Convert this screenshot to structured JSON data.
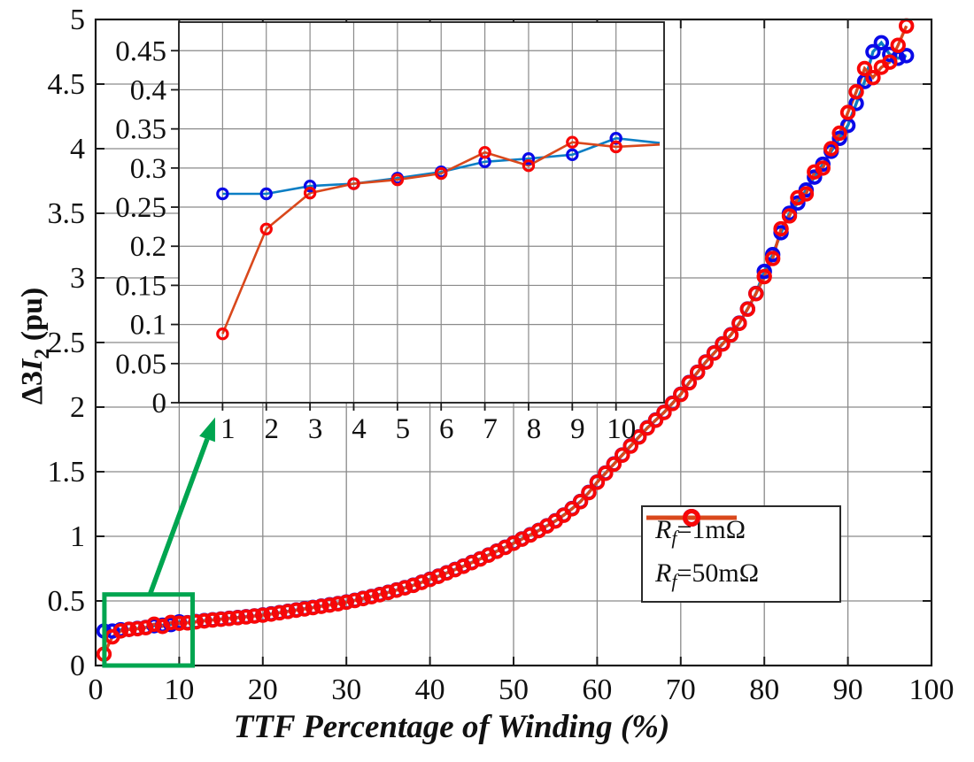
{
  "figure_title": "",
  "labels": {
    "x": "TTF Percentage of Winding (%)",
    "y_pre": "Δ3",
    "y_symbol": "I",
    "y_sub": "2",
    "y_post": " (pu)"
  },
  "colors": {
    "grid": "#8a8a8a",
    "axis_border": "#1a1a1a",
    "background": "#ffffff",
    "blue_line": "#0b7ec4",
    "blue_marker": "#0a0ae8",
    "red_line": "#d9481c",
    "red_marker": "#f80707",
    "annotation_green": "#00a550"
  },
  "legend": {
    "entries": [
      {
        "pre": "R",
        "sub": "f",
        "post": "=1mΩ"
      },
      {
        "pre": "R",
        "sub": "f",
        "post": "=50mΩ"
      }
    ]
  },
  "chart_data": {
    "type": "line",
    "title": "",
    "xlabel": "TTF Percentage of Winding (%)",
    "ylabel": "Δ3I2 (pu)",
    "xlim": [
      0,
      100
    ],
    "ylim": [
      0,
      5
    ],
    "x_ticks": [
      0,
      10,
      20,
      30,
      40,
      50,
      60,
      70,
      80,
      90,
      100
    ],
    "y_ticks": [
      0,
      0.5,
      1,
      1.5,
      2,
      2.5,
      3,
      3.5,
      4,
      4.5,
      5
    ],
    "grid": true,
    "legend_position": "right-center",
    "x": [
      1,
      2,
      3,
      4,
      5,
      6,
      7,
      8,
      9,
      10,
      11,
      12,
      13,
      14,
      15,
      16,
      17,
      18,
      19,
      20,
      21,
      22,
      23,
      24,
      25,
      26,
      27,
      28,
      29,
      30,
      31,
      32,
      33,
      34,
      35,
      36,
      37,
      38,
      39,
      40,
      41,
      42,
      43,
      44,
      45,
      46,
      47,
      48,
      49,
      50,
      51,
      52,
      53,
      54,
      55,
      56,
      57,
      58,
      59,
      60,
      61,
      62,
      63,
      64,
      65,
      66,
      67,
      68,
      69,
      70,
      71,
      72,
      73,
      74,
      75,
      76,
      77,
      78,
      79,
      80,
      81,
      82,
      83,
      84,
      85,
      86,
      87,
      88,
      89,
      90,
      91,
      92,
      93,
      94,
      95,
      96,
      97
    ],
    "series": [
      {
        "name": "Rf=1mΩ",
        "line_color": "#0b7ec4",
        "marker_color": "#0a0ae8",
        "values": [
          0.267,
          0.267,
          0.277,
          0.28,
          0.287,
          0.295,
          0.308,
          0.312,
          0.317,
          0.338,
          0.332,
          0.34,
          0.348,
          0.354,
          0.36,
          0.366,
          0.372,
          0.378,
          0.384,
          0.392,
          0.4,
          0.41,
          0.42,
          0.43,
          0.44,
          0.45,
          0.46,
          0.47,
          0.48,
          0.492,
          0.505,
          0.52,
          0.535,
          0.55,
          0.567,
          0.585,
          0.603,
          0.622,
          0.645,
          0.668,
          0.692,
          0.718,
          0.744,
          0.77,
          0.798,
          0.826,
          0.856,
          0.886,
          0.916,
          0.948,
          0.98,
          1.012,
          1.046,
          1.082,
          1.12,
          1.165,
          1.215,
          1.27,
          1.34,
          1.42,
          1.49,
          1.56,
          1.63,
          1.7,
          1.77,
          1.84,
          1.9,
          1.96,
          2.03,
          2.1,
          2.19,
          2.27,
          2.35,
          2.42,
          2.49,
          2.56,
          2.65,
          2.76,
          2.88,
          3.05,
          3.18,
          3.35,
          3.5,
          3.58,
          3.68,
          3.78,
          3.88,
          3.98,
          4.08,
          4.18,
          4.35,
          4.52,
          4.75,
          4.82,
          4.73,
          4.7,
          4.72
        ]
      },
      {
        "name": "Rf=50mΩ",
        "line_color": "#d9481c",
        "marker_color": "#f80707",
        "values": [
          0.088,
          0.222,
          0.268,
          0.28,
          0.285,
          0.293,
          0.32,
          0.303,
          0.333,
          0.327,
          0.33,
          0.338,
          0.345,
          0.352,
          0.358,
          0.364,
          0.37,
          0.376,
          0.383,
          0.39,
          0.398,
          0.408,
          0.418,
          0.428,
          0.438,
          0.448,
          0.458,
          0.468,
          0.478,
          0.49,
          0.503,
          0.518,
          0.533,
          0.548,
          0.565,
          0.583,
          0.601,
          0.62,
          0.643,
          0.666,
          0.69,
          0.716,
          0.742,
          0.768,
          0.796,
          0.824,
          0.854,
          0.884,
          0.914,
          0.946,
          0.978,
          1.01,
          1.044,
          1.08,
          1.118,
          1.163,
          1.213,
          1.268,
          1.338,
          1.418,
          1.488,
          1.558,
          1.628,
          1.698,
          1.768,
          1.838,
          1.898,
          1.958,
          2.028,
          2.098,
          2.188,
          2.268,
          2.348,
          2.418,
          2.488,
          2.558,
          2.648,
          2.758,
          2.878,
          3.01,
          3.15,
          3.38,
          3.48,
          3.62,
          3.65,
          3.82,
          3.85,
          4.0,
          4.12,
          4.28,
          4.44,
          4.62,
          4.55,
          4.63,
          4.67,
          4.8,
          4.95
        ]
      }
    ],
    "inset": {
      "xlim": [
        0,
        11.1
      ],
      "ylim": [
        0,
        0.4865
      ],
      "x_ticks": [
        1,
        2,
        3,
        4,
        5,
        6,
        7,
        8,
        9,
        10
      ],
      "y_ticks": [
        0,
        0.05,
        0.1,
        0.15,
        0.2,
        0.25,
        0.3,
        0.35,
        0.4,
        0.45
      ],
      "grid": true,
      "line_points_shown": 11,
      "markers_shown": 10
    },
    "zoom_annotation": {
      "rect": {
        "x0": 1.05,
        "y0": 0.0,
        "x1": 11.6,
        "y1": 0.55
      },
      "arrow": {
        "x1": 6.5,
        "y1": 0.55,
        "x2": 14.3,
        "y2": 1.92
      },
      "color": "#00a550"
    }
  }
}
